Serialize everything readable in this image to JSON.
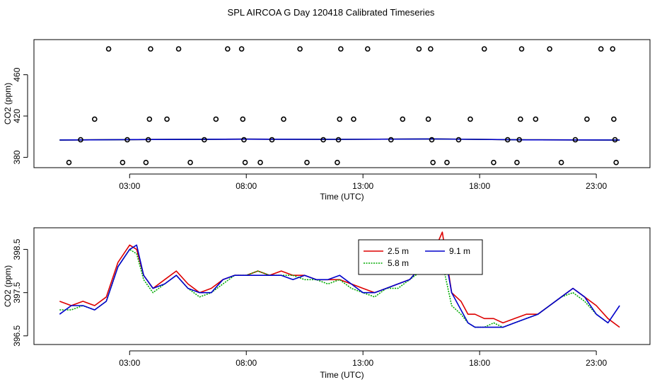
{
  "title": "SPL AIRCOA G  Day 120418  Calibrated Timeseries",
  "chart_data": [
    {
      "type": "scatter",
      "xlabel": "Time (UTC)",
      "ylabel": "CO2 (ppm)",
      "xlim": [
        -1.1,
        25.3
      ],
      "ylim": [
        370,
        494
      ],
      "x_ticks": [
        3,
        8,
        13,
        18,
        23
      ],
      "x_tick_labels": [
        "03:00",
        "08:00",
        "13:00",
        "18:00",
        "23:00"
      ],
      "y_ticks": [
        380,
        420,
        460
      ],
      "y_tick_labels": [
        "380",
        "420",
        "460"
      ],
      "points": [
        [
          0.4,
          375
        ],
        [
          0.9,
          397
        ],
        [
          1.5,
          417
        ],
        [
          2.1,
          485
        ],
        [
          2.7,
          375
        ],
        [
          2.9,
          397
        ],
        [
          3.7,
          375
        ],
        [
          3.8,
          397
        ],
        [
          3.85,
          417
        ],
        [
          3.9,
          485
        ],
        [
          4.6,
          417
        ],
        [
          5.1,
          485
        ],
        [
          5.6,
          375
        ],
        [
          6.2,
          397
        ],
        [
          6.7,
          417
        ],
        [
          7.2,
          485
        ],
        [
          7.8,
          485
        ],
        [
          7.85,
          417
        ],
        [
          7.9,
          397
        ],
        [
          7.95,
          375
        ],
        [
          8.6,
          375
        ],
        [
          9.1,
          397
        ],
        [
          9.6,
          417
        ],
        [
          10.3,
          485
        ],
        [
          10.6,
          375
        ],
        [
          11.3,
          397
        ],
        [
          11.9,
          375
        ],
        [
          11.95,
          397
        ],
        [
          12.0,
          417
        ],
        [
          12.05,
          485
        ],
        [
          12.6,
          417
        ],
        [
          13.2,
          485
        ],
        [
          14.2,
          397
        ],
        [
          14.7,
          417
        ],
        [
          15.4,
          485
        ],
        [
          15.8,
          417
        ],
        [
          15.9,
          485
        ],
        [
          15.95,
          397
        ],
        [
          16.0,
          375
        ],
        [
          16.6,
          375
        ],
        [
          17.1,
          397
        ],
        [
          17.6,
          417
        ],
        [
          18.2,
          485
        ],
        [
          18.6,
          375
        ],
        [
          19.2,
          397
        ],
        [
          19.6,
          375
        ],
        [
          19.7,
          397
        ],
        [
          19.75,
          417
        ],
        [
          19.8,
          485
        ],
        [
          20.4,
          417
        ],
        [
          21.0,
          485
        ],
        [
          21.5,
          375
        ],
        [
          22.1,
          397
        ],
        [
          22.6,
          417
        ],
        [
          23.2,
          485
        ],
        [
          23.7,
          485
        ],
        [
          23.75,
          417
        ],
        [
          23.8,
          397
        ],
        [
          23.85,
          375
        ]
      ],
      "series": [
        {
          "name": "2.5 m",
          "color": "#dd0000",
          "x": [
            0,
            4,
            8,
            12,
            16,
            20,
            24
          ],
          "y": [
            396.8,
            397.3,
            397.6,
            397.4,
            397.8,
            396.9,
            396.8
          ]
        },
        {
          "name": "5.8 m",
          "color": "#00aa00",
          "x": [
            0,
            4,
            8,
            12,
            16,
            20,
            24
          ],
          "y": [
            396.8,
            397.3,
            397.6,
            397.4,
            397.8,
            396.9,
            396.8
          ]
        },
        {
          "name": "9.1 m",
          "color": "#0000cc",
          "x": [
            0,
            4,
            8,
            12,
            16,
            20,
            24
          ],
          "y": [
            396.8,
            397.3,
            397.6,
            397.4,
            397.8,
            396.9,
            396.8
          ]
        }
      ]
    },
    {
      "type": "line",
      "xlabel": "Time (UTC)",
      "ylabel": "CO2 (ppm)",
      "xlim": [
        -1.1,
        25.3
      ],
      "ylim": [
        396.3,
        399.0
      ],
      "x_ticks": [
        3,
        8,
        13,
        18,
        23
      ],
      "x_tick_labels": [
        "03:00",
        "08:00",
        "13:00",
        "18:00",
        "23:00"
      ],
      "y_ticks": [
        396.5,
        397.5,
        398.5
      ],
      "y_tick_labels": [
        "396.5",
        "397.5",
        "398.5"
      ],
      "legend": {
        "position": "top-center",
        "entries": [
          "2.5 m",
          "5.8 m",
          "9.1 m"
        ]
      },
      "series": [
        {
          "name": "2.5 m",
          "color": "#dd0000",
          "style": "solid",
          "x": [
            0,
            0.5,
            1,
            1.5,
            2,
            2.5,
            3,
            3.3,
            3.6,
            4,
            4.5,
            5,
            5.5,
            6,
            6.5,
            7,
            7.5,
            8,
            8.5,
            9,
            9.5,
            10,
            10.5,
            11,
            11.5,
            12,
            12.5,
            13,
            13.5,
            14,
            14.5,
            15,
            15.5,
            16,
            16.4,
            16.8,
            17.2,
            17.5,
            17.8,
            18.2,
            18.6,
            19,
            19.5,
            20,
            20.5,
            21,
            21.5,
            22,
            22.5,
            23,
            23.5,
            24
          ],
          "y": [
            397.3,
            397.2,
            397.3,
            397.2,
            397.4,
            398.2,
            398.6,
            398.5,
            397.9,
            397.6,
            397.8,
            398.0,
            397.7,
            397.5,
            397.6,
            397.8,
            397.9,
            397.9,
            398.0,
            397.9,
            398.0,
            397.9,
            397.9,
            397.8,
            397.8,
            397.8,
            397.7,
            397.6,
            397.5,
            397.6,
            397.7,
            397.8,
            398.1,
            398.4,
            398.9,
            397.5,
            397.3,
            397.0,
            397.0,
            396.9,
            396.9,
            396.8,
            396.9,
            397.0,
            397.0,
            397.2,
            397.4,
            397.6,
            397.4,
            397.2,
            396.9,
            396.7
          ]
        },
        {
          "name": "5.8 m",
          "color": "#00aa00",
          "style": "dotted",
          "x": [
            0,
            0.5,
            1,
            1.5,
            2,
            2.5,
            3,
            3.3,
            3.6,
            4,
            4.5,
            5,
            5.5,
            6,
            6.5,
            7,
            7.5,
            8,
            8.5,
            9,
            9.5,
            10,
            10.5,
            11,
            11.5,
            12,
            12.5,
            13,
            13.5,
            14,
            14.5,
            15,
            15.5,
            16,
            16.4,
            16.8,
            17.2,
            17.5,
            17.8,
            18.2,
            18.6,
            19,
            19.5,
            20,
            20.5,
            21,
            21.5,
            22,
            22.5,
            23,
            23.5
          ],
          "y": [
            397.1,
            397.1,
            397.2,
            397.1,
            397.3,
            398.1,
            398.5,
            398.4,
            397.8,
            397.5,
            397.7,
            397.9,
            397.6,
            397.4,
            397.5,
            397.7,
            397.9,
            397.9,
            398.0,
            397.9,
            397.9,
            397.9,
            397.8,
            397.8,
            397.7,
            397.8,
            397.6,
            397.5,
            397.4,
            397.6,
            397.6,
            397.8,
            398.0,
            398.3,
            398.2,
            397.2,
            397.0,
            396.8,
            396.7,
            396.7,
            396.8,
            396.7,
            396.8,
            396.9,
            397.0,
            397.2,
            397.4,
            397.5,
            397.3,
            397.0,
            396.8
          ]
        },
        {
          "name": "9.1 m",
          "color": "#0000cc",
          "style": "solid",
          "x": [
            0,
            0.5,
            1,
            1.5,
            2,
            2.5,
            3,
            3.3,
            3.6,
            4,
            4.5,
            5,
            5.5,
            6,
            6.5,
            7,
            7.5,
            8,
            8.5,
            9,
            9.5,
            10,
            10.5,
            11,
            11.5,
            12,
            12.5,
            13,
            13.5,
            14,
            14.5,
            15,
            15.5,
            16,
            16.4,
            16.8,
            17.2,
            17.5,
            17.8,
            18.2,
            18.6,
            19,
            19.5,
            20,
            20.5,
            21,
            21.5,
            22,
            22.5,
            23,
            23.5,
            24
          ],
          "y": [
            397.0,
            397.2,
            397.2,
            397.1,
            397.3,
            398.1,
            398.5,
            398.6,
            397.9,
            397.6,
            397.7,
            397.9,
            397.6,
            397.5,
            397.5,
            397.8,
            397.9,
            397.9,
            397.9,
            397.9,
            397.9,
            397.8,
            397.9,
            397.8,
            397.8,
            397.9,
            397.7,
            397.5,
            397.5,
            397.6,
            397.7,
            397.8,
            398.1,
            398.3,
            398.7,
            397.5,
            397.1,
            396.8,
            396.7,
            396.7,
            396.7,
            396.7,
            396.8,
            396.9,
            397.0,
            397.2,
            397.4,
            397.6,
            397.4,
            397.0,
            396.8,
            397.2
          ]
        }
      ]
    }
  ]
}
